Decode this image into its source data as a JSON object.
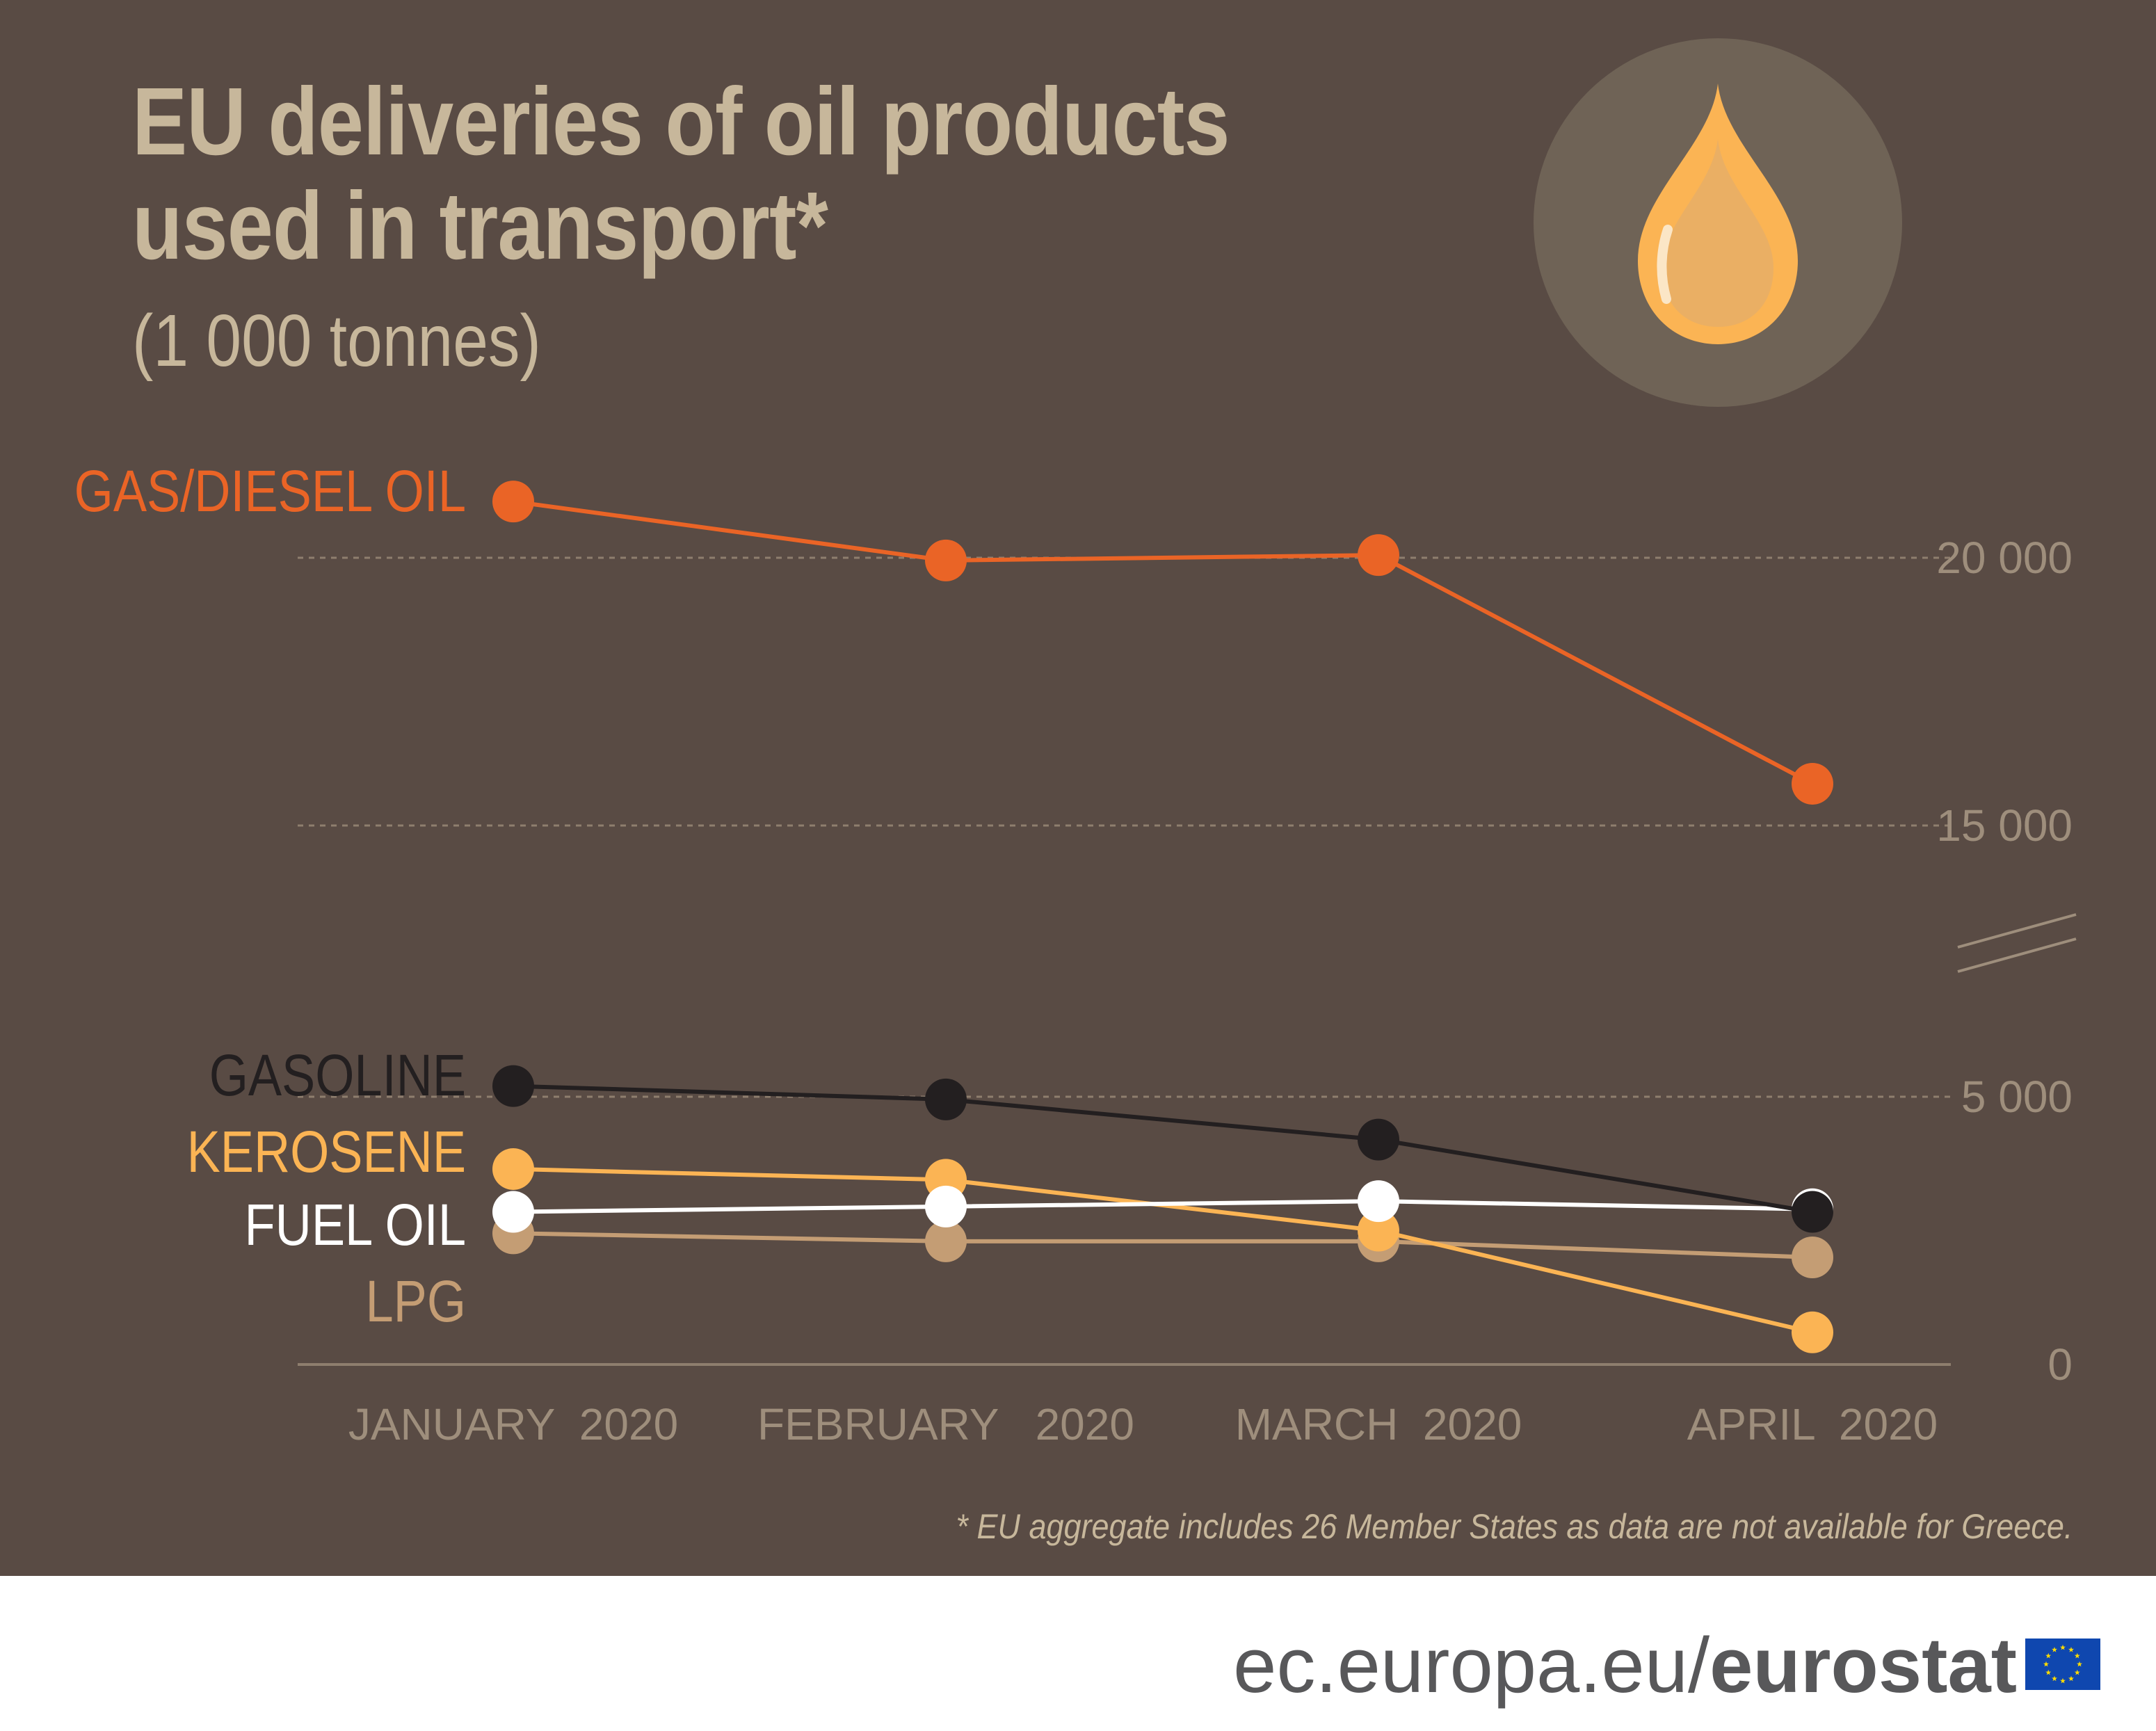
{
  "header": {
    "title": "EU deliveries of oil products used in transport*",
    "subtitle": "(1 000 tonnes)"
  },
  "footnote": "* EU aggregate includes 26 Member States as data are not available for Greece.",
  "footer": {
    "site_prefix": "ec.europa.eu/",
    "site_bold": "eurostat"
  },
  "icons": {
    "illustration": "oil-drop-icon",
    "flag": "eu-flag-icon"
  },
  "colors": {
    "background": "#594b44",
    "title": "#c7b79b",
    "gas_diesel": "#ea6426",
    "gasoline": "#231f20",
    "kerosene": "#fbb454",
    "fuel_oil": "#ffffff",
    "lpg": "#c49d74"
  },
  "chart_data": {
    "type": "line",
    "x": [
      "JANUARY  2020",
      "FEBRUARY   2020",
      "MARCH  2020",
      "APRIL  2020"
    ],
    "y_ticks": [
      "20 000",
      "15 000",
      "5 000",
      "0"
    ],
    "y_tick_values": [
      20000,
      15000,
      5000,
      0
    ],
    "axis_break": "between 5 000 and 15 000",
    "grid": "dashed horizontal",
    "series": [
      {
        "name": "GAS/DIESEL OIL",
        "color": "#ea6426",
        "values": [
          21050,
          19950,
          20050,
          15780
        ]
      },
      {
        "name": "GASOLINE",
        "color": "#231f20",
        "values": [
          5200,
          4950,
          4200,
          2850
        ]
      },
      {
        "name": "KEROSENE",
        "color": "#fbb454",
        "values": [
          3650,
          3450,
          2500,
          600
        ]
      },
      {
        "name": "FUEL OIL",
        "color": "#ffffff",
        "values": [
          2850,
          2950,
          3050,
          2900
        ]
      },
      {
        "name": "LPG",
        "color": "#c49d74",
        "values": [
          2450,
          2300,
          2300,
          2000
        ]
      }
    ]
  }
}
